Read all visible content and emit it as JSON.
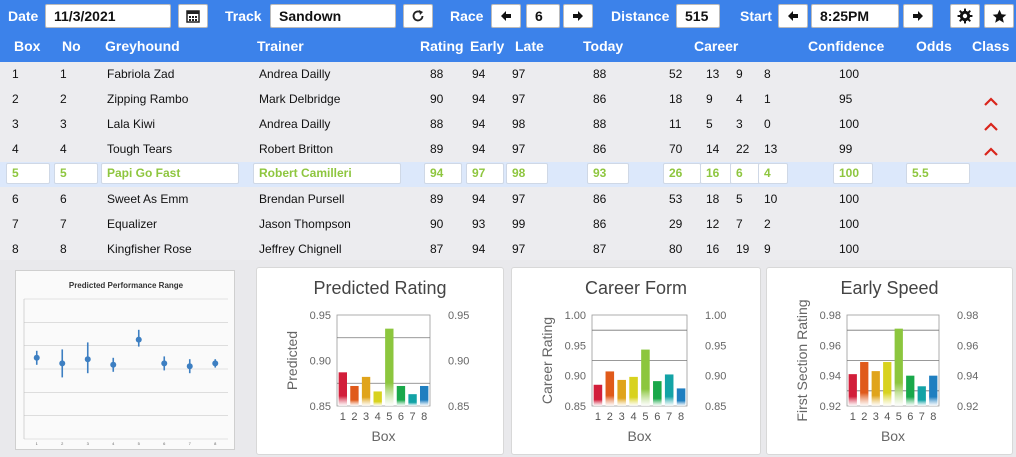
{
  "toolbar": {
    "date_label": "Date",
    "date_value": "11/3/2021",
    "date_icon": "calendar-icon",
    "track_label": "Track",
    "track_value": "Sandown",
    "refresh_icon": "refresh-icon",
    "race_label": "Race",
    "race_value": "6",
    "distance_label": "Distance",
    "distance_value": "515",
    "start_label": "Start",
    "start_value": "8:25PM",
    "settings_icon": "gear-icon",
    "favorite_icon": "star-icon"
  },
  "columns": {
    "box": "Box",
    "no": "No",
    "greyhound": "Greyhound",
    "trainer": "Trainer",
    "rating": "Rating",
    "early": "Early",
    "late": "Late",
    "today": "Today",
    "career": "Career",
    "confidence": "Confidence",
    "odds": "Odds",
    "class": "Class"
  },
  "rows": [
    {
      "box": "1",
      "no": "1",
      "name": "Fabriola Zad",
      "trainer": "Andrea Dailly",
      "rating": "88",
      "early": "94",
      "late": "97",
      "today": "88",
      "c1": "52",
      "c2": "13",
      "c3": "9",
      "c4": "8",
      "confidence": "100",
      "odds": "",
      "class_up": false
    },
    {
      "box": "2",
      "no": "2",
      "name": "Zipping Rambo",
      "trainer": "Mark Delbridge",
      "rating": "90",
      "early": "94",
      "late": "97",
      "today": "86",
      "c1": "18",
      "c2": "9",
      "c3": "4",
      "c4": "1",
      "confidence": "95",
      "odds": "",
      "class_up": true
    },
    {
      "box": "3",
      "no": "3",
      "name": "Lala Kiwi",
      "trainer": "Andrea Dailly",
      "rating": "88",
      "early": "94",
      "late": "98",
      "today": "88",
      "c1": "11",
      "c2": "5",
      "c3": "3",
      "c4": "0",
      "confidence": "100",
      "odds": "",
      "class_up": true
    },
    {
      "box": "4",
      "no": "4",
      "name": "Tough Tears",
      "trainer": "Robert Britton",
      "rating": "89",
      "early": "94",
      "late": "97",
      "today": "86",
      "c1": "70",
      "c2": "14",
      "c3": "22",
      "c4": "13",
      "confidence": "99",
      "odds": "",
      "class_up": true
    },
    {
      "box": "5",
      "no": "5",
      "name": "Papi Go Fast",
      "trainer": "Robert Camilleri",
      "rating": "94",
      "early": "97",
      "late": "98",
      "today": "93",
      "c1": "26",
      "c2": "16",
      "c3": "6",
      "c4": "4",
      "confidence": "100",
      "odds": "5.5",
      "class_up": false
    },
    {
      "box": "6",
      "no": "6",
      "name": "Sweet As Emm",
      "trainer": "Brendan Pursell",
      "rating": "89",
      "early": "94",
      "late": "97",
      "today": "86",
      "c1": "53",
      "c2": "18",
      "c3": "5",
      "c4": "10",
      "confidence": "100",
      "odds": "",
      "class_up": false
    },
    {
      "box": "7",
      "no": "7",
      "name": "Equalizer",
      "trainer": "Jason Thompson",
      "rating": "90",
      "early": "93",
      "late": "99",
      "today": "86",
      "c1": "29",
      "c2": "12",
      "c3": "7",
      "c4": "2",
      "confidence": "100",
      "odds": "",
      "class_up": false
    },
    {
      "box": "8",
      "no": "8",
      "name": "Kingfisher Rose",
      "trainer": "Jeffrey Chignell",
      "rating": "87",
      "early": "94",
      "late": "97",
      "today": "87",
      "c1": "80",
      "c2": "16",
      "c3": "19",
      "c4": "9",
      "confidence": "100",
      "odds": "",
      "class_up": false
    }
  ],
  "selected_row": 4,
  "colors": {
    "accent": "#3c82ea",
    "selected_text": "#8ec63f",
    "class_up": "#d9251c",
    "bars": [
      "#d21e3a",
      "#e05a1a",
      "#e0a41b",
      "#d8d21e",
      "#8cc63e",
      "#19a84a",
      "#13a3a6",
      "#1f7fc0"
    ]
  },
  "thumbnail": {
    "title": "Predicted Performance Range",
    "x": [
      "1",
      "2",
      "3",
      "4",
      "5",
      "6",
      "7",
      "8"
    ],
    "points": [
      {
        "mid": 0.58,
        "lo": 0.53,
        "hi": 0.63
      },
      {
        "mid": 0.54,
        "lo": 0.44,
        "hi": 0.64
      },
      {
        "mid": 0.57,
        "lo": 0.47,
        "hi": 0.69
      },
      {
        "mid": 0.53,
        "lo": 0.48,
        "hi": 0.58
      },
      {
        "mid": 0.71,
        "lo": 0.66,
        "hi": 0.78
      },
      {
        "mid": 0.54,
        "lo": 0.49,
        "hi": 0.59
      },
      {
        "mid": 0.52,
        "lo": 0.47,
        "hi": 0.57
      },
      {
        "mid": 0.54,
        "lo": 0.51,
        "hi": 0.57
      }
    ]
  },
  "chart_data": [
    {
      "type": "bar",
      "title": "Predicted Rating",
      "xlabel": "Box",
      "ylabel": "Predicted",
      "categories": [
        "1",
        "2",
        "3",
        "4",
        "5",
        "6",
        "7",
        "8"
      ],
      "values": [
        0.887,
        0.872,
        0.882,
        0.866,
        0.935,
        0.872,
        0.863,
        0.872
      ],
      "ylim": [
        0.85,
        0.95
      ],
      "yticks": [
        "0.85",
        "0.90",
        "0.95"
      ],
      "reflines": [
        0.925,
        0.875
      ]
    },
    {
      "type": "bar",
      "title": "Career Form",
      "xlabel": "Box",
      "ylabel": "Career Rating",
      "categories": [
        "1",
        "2",
        "3",
        "4",
        "5",
        "6",
        "7",
        "8"
      ],
      "values": [
        0.885,
        0.907,
        0.893,
        0.898,
        0.943,
        0.891,
        0.902,
        0.879
      ],
      "ylim": [
        0.85,
        1.0
      ],
      "yticks": [
        "0.85",
        "0.90",
        "0.95",
        "1.00"
      ],
      "reflines": [
        0.975,
        0.925
      ]
    },
    {
      "type": "bar",
      "title": "Early Speed",
      "xlabel": "Box",
      "ylabel": "First Section Rating",
      "categories": [
        "1",
        "2",
        "3",
        "4",
        "5",
        "6",
        "7",
        "8"
      ],
      "values": [
        0.941,
        0.949,
        0.943,
        0.949,
        0.971,
        0.94,
        0.933,
        0.94
      ],
      "ylim": [
        0.92,
        0.98
      ],
      "yticks": [
        "0.92",
        "0.94",
        "0.96",
        "0.98"
      ],
      "reflines": [
        0.97,
        0.95,
        0.93
      ]
    }
  ]
}
